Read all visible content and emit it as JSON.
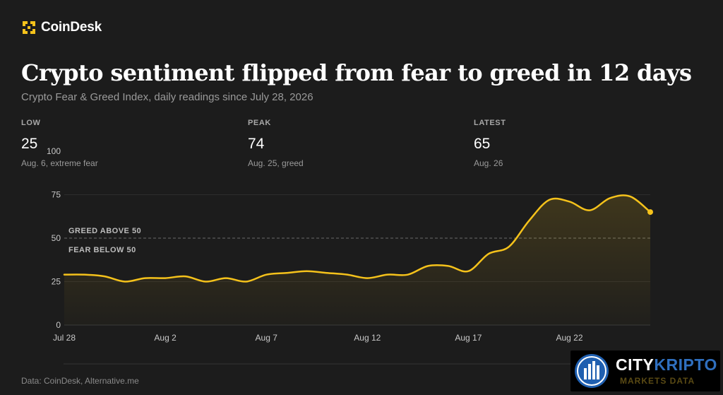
{
  "brand": {
    "logo_text": "CoinDesk",
    "accent": "#f5c21b"
  },
  "header": {
    "title": "Crypto sentiment flipped from fear to greed in 12 days",
    "subtitle": "Crypto Fear & Greed Index, daily readings since July 28, 2026"
  },
  "stats": [
    {
      "label": "LOW",
      "value": "25",
      "note": "Aug. 6, extreme fear"
    },
    {
      "label": "PEAK",
      "value": "74",
      "note": "Aug. 25, greed"
    },
    {
      "label": "LATEST",
      "value": "65",
      "note": "Aug. 26"
    }
  ],
  "annotations": {
    "above": "GREED ABOVE 50",
    "below": "FEAR BELOW 50"
  },
  "footer": {
    "source": "Data: CoinDesk, Alternative.me"
  },
  "watermark": {
    "brand_a": "CITY",
    "brand_b": "KRIPTO",
    "sub": "MARKETS DATA"
  },
  "chart_data": {
    "type": "area",
    "x": [
      "Jul 28",
      "Jul 29",
      "Jul 30",
      "Jul 31",
      "Aug 1",
      "Aug 2",
      "Aug 3",
      "Aug 4",
      "Aug 5",
      "Aug 6",
      "Aug 7",
      "Aug 8",
      "Aug 9",
      "Aug 10",
      "Aug 11",
      "Aug 12",
      "Aug 13",
      "Aug 14",
      "Aug 15",
      "Aug 16",
      "Aug 17",
      "Aug 18",
      "Aug 19",
      "Aug 20",
      "Aug 21",
      "Aug 22",
      "Aug 23",
      "Aug 24",
      "Aug 25",
      "Aug 26"
    ],
    "x_ticks": [
      "Jul 28",
      "Aug 2",
      "Aug 7",
      "Aug 12",
      "Aug 17",
      "Aug 22"
    ],
    "values": [
      29,
      29,
      28,
      25,
      27,
      27,
      28,
      25,
      27,
      25,
      29,
      30,
      31,
      30,
      29,
      27,
      29,
      29,
      34,
      34,
      31,
      41,
      45,
      60,
      72,
      71,
      66,
      73,
      74,
      65
    ],
    "ylim": [
      0,
      100
    ],
    "y_ticks": [
      0,
      25,
      50,
      75,
      100
    ],
    "reference_line": 50,
    "line_color": "#f5c21b",
    "grid": true
  }
}
